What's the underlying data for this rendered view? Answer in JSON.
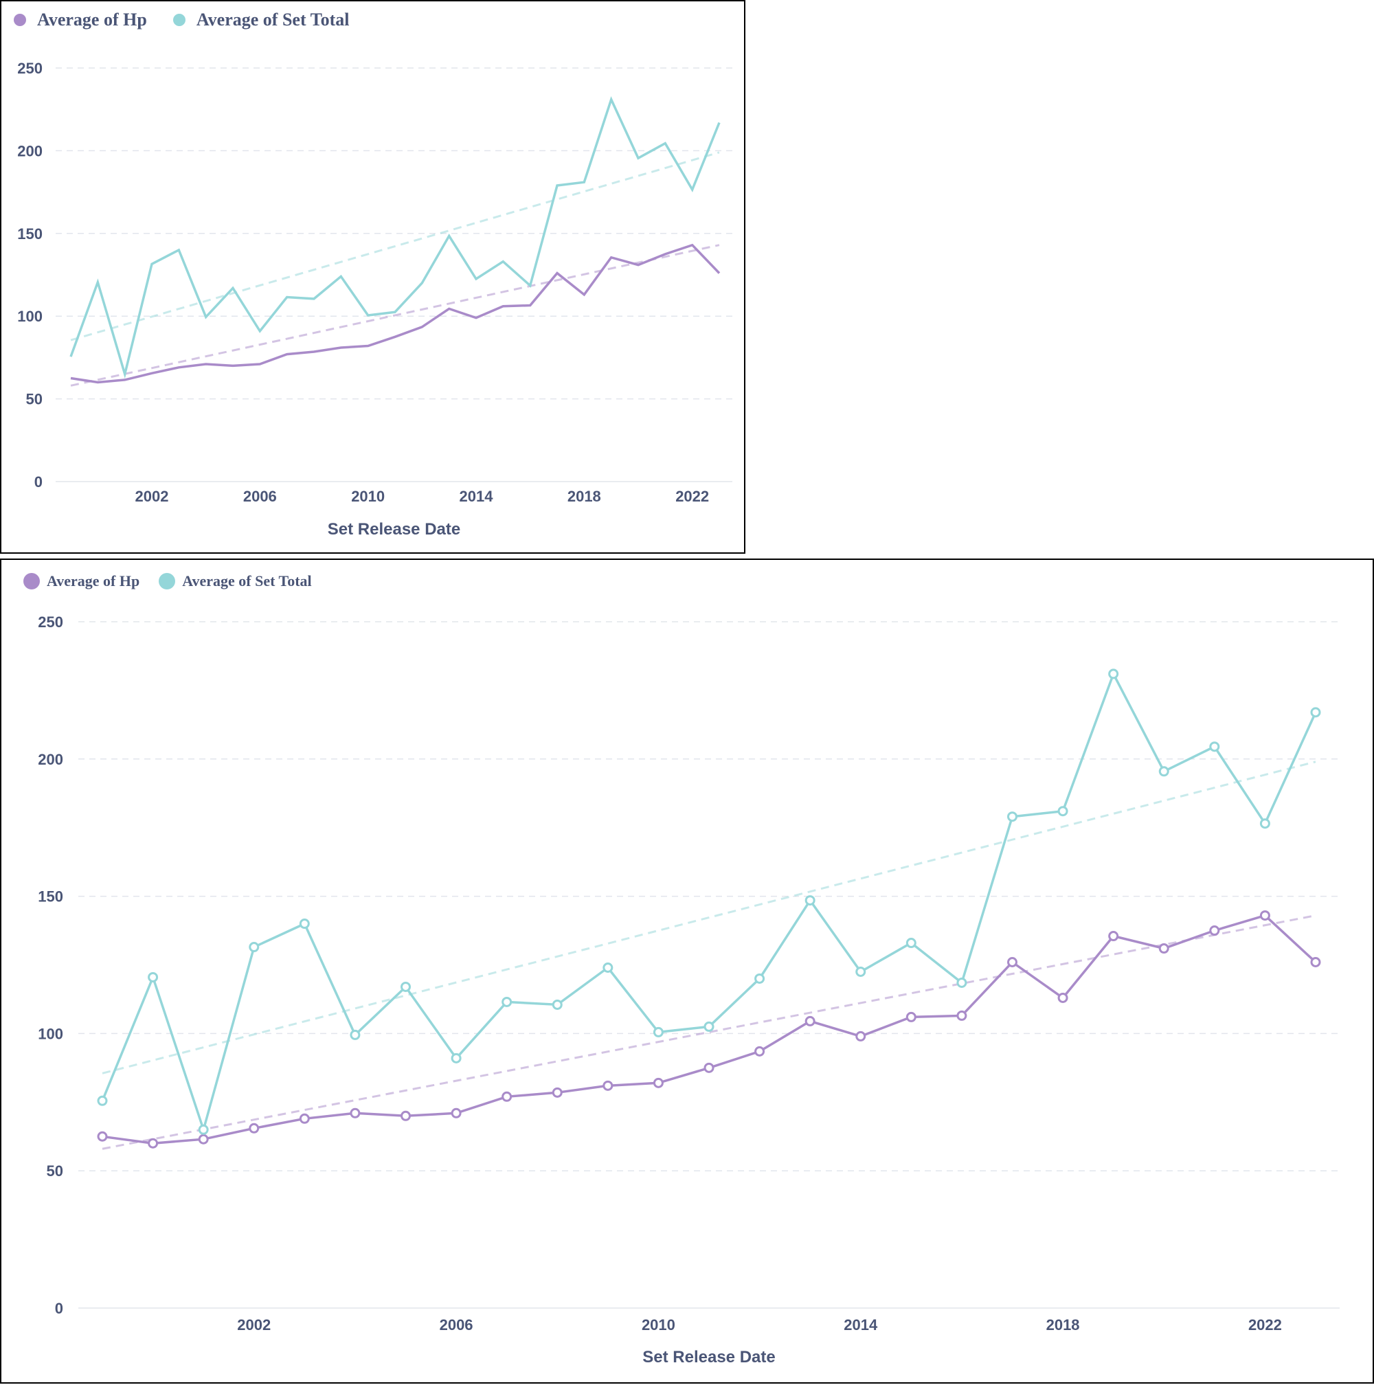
{
  "colors": {
    "hp": "#a98bc9",
    "set_total": "#94d6d9",
    "text": "#4a5576",
    "grid": "#e2e5ec"
  },
  "chart_data": [
    {
      "type": "line",
      "markers": false,
      "xlabel": "Set Release Date",
      "x": [
        1999,
        2000,
        2001,
        2002,
        2003,
        2004,
        2005,
        2006,
        2007,
        2008,
        2009,
        2010,
        2011,
        2012,
        2013,
        2014,
        2015,
        2016,
        2017,
        2018,
        2019,
        2020,
        2021,
        2022,
        2023
      ],
      "x_ticks": [
        2002,
        2006,
        2010,
        2014,
        2018,
        2022
      ],
      "ylim": [
        0,
        250
      ],
      "y_ticks": [
        0,
        50,
        100,
        150,
        200,
        250
      ],
      "grid": true,
      "legend_position": "top-left",
      "series": [
        {
          "name": "Average of Hp",
          "color_key": "hp",
          "values": [
            62.5,
            60,
            61.5,
            65.5,
            69,
            71,
            70,
            71,
            77,
            78.5,
            81,
            82,
            87.5,
            93.5,
            104.5,
            99,
            106,
            106.5,
            126,
            113,
            135.5,
            131,
            137.5,
            143,
            126
          ],
          "trend": [
            58,
            143
          ]
        },
        {
          "name": "Average of Set Total",
          "color_key": "set_total",
          "values": [
            75.5,
            120.5,
            65,
            131.5,
            140,
            99.5,
            117,
            91,
            111.5,
            110.5,
            124,
            100.5,
            102.5,
            120,
            148.5,
            122.5,
            133,
            118.5,
            179,
            181,
            231,
            195.5,
            204.5,
            176.5,
            217
          ],
          "trend": [
            85.5,
            199
          ]
        }
      ]
    },
    {
      "type": "line",
      "markers": true,
      "xlabel": "Set Release Date",
      "x": [
        1999,
        2000,
        2001,
        2002,
        2003,
        2004,
        2005,
        2006,
        2007,
        2008,
        2009,
        2010,
        2011,
        2012,
        2013,
        2014,
        2015,
        2016,
        2017,
        2018,
        2019,
        2020,
        2021,
        2022,
        2023
      ],
      "x_ticks": [
        2002,
        2006,
        2010,
        2014,
        2018,
        2022
      ],
      "ylim": [
        0,
        250
      ],
      "y_ticks": [
        0,
        50,
        100,
        150,
        200,
        250
      ],
      "grid": true,
      "legend_position": "top-left",
      "series": [
        {
          "name": "Average of Hp",
          "color_key": "hp",
          "values": [
            62.5,
            60,
            61.5,
            65.5,
            69,
            71,
            70,
            71,
            77,
            78.5,
            81,
            82,
            87.5,
            93.5,
            104.5,
            99,
            106,
            106.5,
            126,
            113,
            135.5,
            131,
            137.5,
            143,
            126
          ],
          "trend": [
            58,
            143
          ]
        },
        {
          "name": "Average of Set Total",
          "color_key": "set_total",
          "values": [
            75.5,
            120.5,
            65,
            131.5,
            140,
            99.5,
            117,
            91,
            111.5,
            110.5,
            124,
            100.5,
            102.5,
            120,
            148.5,
            122.5,
            133,
            118.5,
            179,
            181,
            231,
            195.5,
            204.5,
            176.5,
            217
          ],
          "trend": [
            85.5,
            199
          ]
        }
      ]
    }
  ]
}
